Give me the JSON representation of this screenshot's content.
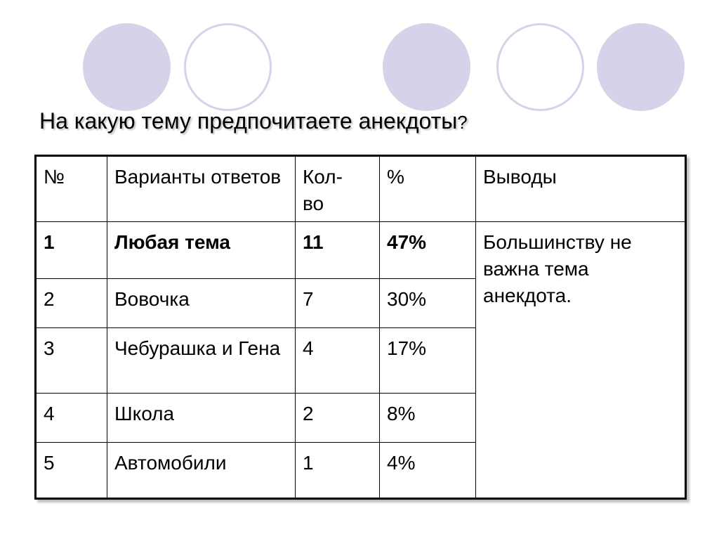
{
  "slide": {
    "title": "На какую тему предпочитаете анекдоты",
    "title_mark": "?"
  },
  "decor": {
    "circle_fill": "#d5d3ea",
    "circle_outline": "#d5d3ea"
  },
  "table": {
    "headers": {
      "num": "№",
      "option": "Варианты ответов",
      "count": "Кол-во",
      "percent": "%",
      "conclusion": "Выводы"
    },
    "rows": [
      {
        "num": "1",
        "option": "Любая тема",
        "count": "11",
        "percent": "47%"
      },
      {
        "num": "2",
        "option": "Вовочка",
        "count": "7",
        "percent": "30%"
      },
      {
        "num": "3",
        "option": "Чебурашка и Гена",
        "count": "4",
        "percent": "17%"
      },
      {
        "num": "4",
        "option": "Школа",
        "count": "2",
        "percent": "8%"
      },
      {
        "num": "5",
        "option": "Автомобили",
        "count": "1",
        "percent": "4%"
      }
    ],
    "conclusion": "Большинству не важна тема анекдота."
  }
}
